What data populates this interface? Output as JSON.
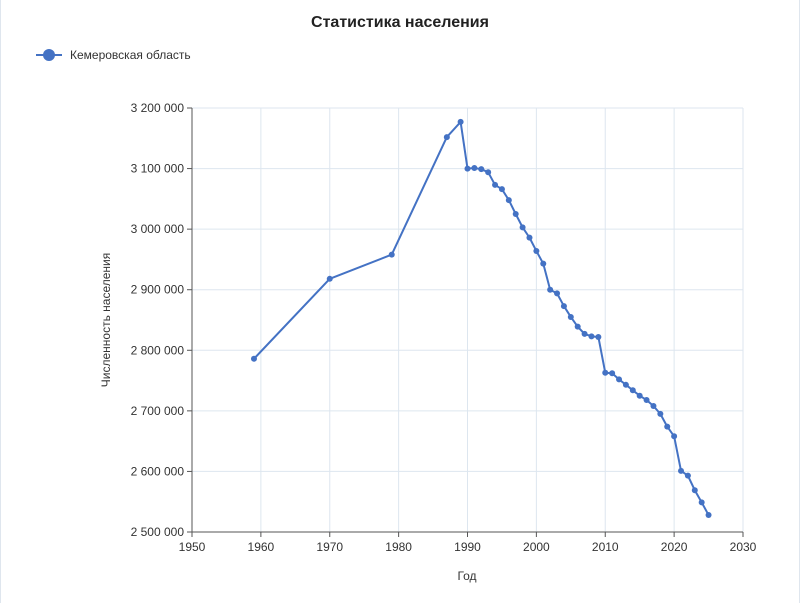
{
  "chart_data": {
    "type": "line",
    "title": "Статистика населения",
    "xlabel": "Год",
    "ylabel": "Численность населения",
    "xlim": [
      1950,
      2030
    ],
    "ylim": [
      2500000,
      3200000
    ],
    "x_ticks": [
      1950,
      1960,
      1970,
      1980,
      1990,
      2000,
      2010,
      2020,
      2030
    ],
    "y_ticks": [
      2500000,
      2600000,
      2700000,
      2800000,
      2900000,
      3000000,
      3100000,
      3200000
    ],
    "x_tick_labels": [
      "1950",
      "1960",
      "1970",
      "1980",
      "1990",
      "2000",
      "2010",
      "2020",
      "2030"
    ],
    "y_tick_labels": [
      "2 500 000",
      "2 600 000",
      "2 700 000",
      "2 800 000",
      "2 900 000",
      "3 000 000",
      "3 100 000",
      "3 200 000"
    ],
    "grid": true,
    "legend_position": "top-left",
    "series": [
      {
        "name": "Кемеровская область",
        "color": "#4472c4",
        "x": [
          1959,
          1970,
          1979,
          1987,
          1989,
          1990,
          1991,
          1992,
          1993,
          1994,
          1995,
          1996,
          1997,
          1998,
          1999,
          2000,
          2001,
          2002,
          2003,
          2004,
          2005,
          2006,
          2007,
          2008,
          2009,
          2010,
          2011,
          2012,
          2013,
          2014,
          2015,
          2016,
          2017,
          2018,
          2019,
          2020,
          2021,
          2022,
          2023,
          2024,
          2025
        ],
        "y": [
          2786000,
          2918000,
          2958000,
          3152000,
          3177000,
          3100000,
          3101000,
          3099000,
          3094000,
          3073000,
          3066000,
          3048000,
          3025000,
          3003000,
          2986000,
          2964000,
          2943000,
          2900000,
          2894000,
          2873000,
          2855000,
          2839000,
          2827000,
          2823000,
          2822000,
          2763000,
          2762000,
          2752000,
          2743000,
          2734000,
          2725000,
          2718000,
          2708000,
          2695000,
          2674000,
          2658000,
          2601000,
          2593000,
          2569000,
          2549000,
          2528000
        ]
      }
    ]
  }
}
